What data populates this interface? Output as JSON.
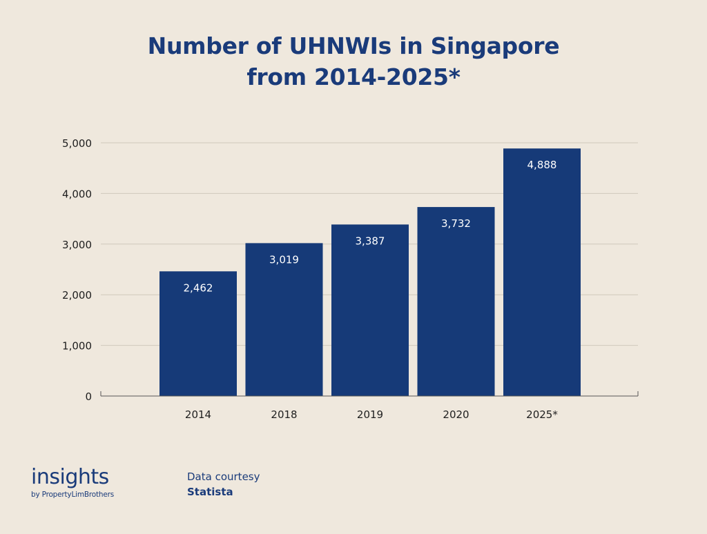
{
  "colors": {
    "background": "#efe8dd",
    "bar": "#163a78",
    "title": "#1a3b7a",
    "gridline": "#cfc8bc",
    "axis_text": "#1e1e1e",
    "bar_label": "#ffffff"
  },
  "chart_data": {
    "type": "bar",
    "title_lines": [
      "Number of UHNWIs in Singapore",
      "from 2014-2025*"
    ],
    "categories": [
      "2014",
      "2018",
      "2019",
      "2020",
      "2025*"
    ],
    "values": [
      2462,
      3019,
      3387,
      3732,
      4888
    ],
    "value_labels": [
      "2,462",
      "3,019",
      "3,387",
      "3,732",
      "4,888"
    ],
    "ylim": [
      0,
      5000
    ],
    "yticks": [
      0,
      1000,
      2000,
      3000,
      4000,
      5000
    ],
    "ytick_labels": [
      "0",
      "1,000",
      "2,000",
      "3,000",
      "4,000",
      "5,000"
    ],
    "grid": true,
    "legend": "none",
    "xlabel": "",
    "ylabel": ""
  },
  "brand": {
    "name": "insights",
    "byline": "by PropertyLimBrothers"
  },
  "credit": {
    "label": "Data courtesy",
    "source": "Statista"
  }
}
